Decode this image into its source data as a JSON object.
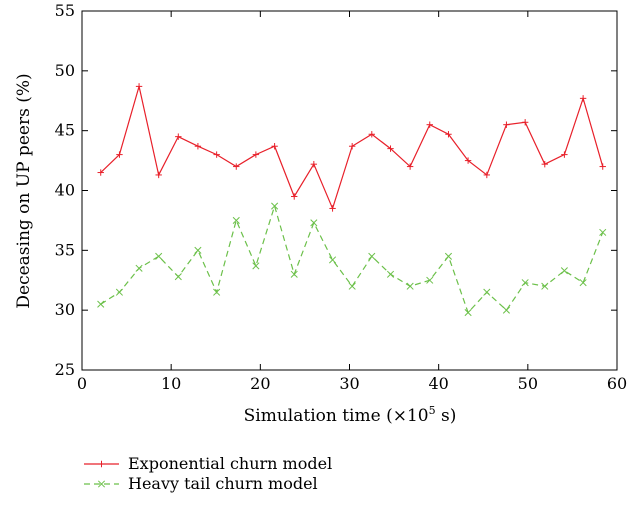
{
  "chart_data": {
    "type": "line",
    "title": "",
    "xlabel": "Simulation time (×10",
    "xlabel_exp": "5",
    "xlabel_unit": " s)",
    "ylabel": "Deceasing on UP peers (%)",
    "xlim": [
      0,
      60
    ],
    "ylim": [
      25,
      55
    ],
    "x_ticks": [
      0,
      10,
      20,
      30,
      40,
      50,
      60
    ],
    "y_ticks": [
      25,
      30,
      35,
      40,
      45,
      50,
      55
    ],
    "grid": false,
    "legend_position": "bottom-left, below plot",
    "x": [
      2.1,
      4.2,
      6.4,
      8.6,
      10.8,
      13,
      15.1,
      17.3,
      19.5,
      21.6,
      23.8,
      26,
      28.1,
      30.3,
      32.5,
      34.6,
      36.8,
      39,
      41.1,
      43.3,
      45.4,
      47.6,
      49.7,
      51.9,
      54.1,
      56.2,
      58.4
    ],
    "series": [
      {
        "name": "Exponential churn model",
        "color": "#e8202a",
        "style": "solid",
        "marker": "plus",
        "values": [
          41.5,
          43.0,
          48.7,
          41.3,
          44.5,
          43.7,
          43.0,
          42.0,
          43.0,
          43.7,
          39.5,
          42.2,
          38.5,
          43.7,
          44.7,
          43.5,
          42.0,
          45.5,
          44.7,
          42.5,
          41.3,
          45.5,
          45.7,
          42.2,
          43.0,
          47.7,
          42.0
        ]
      },
      {
        "name": "Heavy tail churn model",
        "color": "#6cc04a",
        "style": "dashed",
        "marker": "x",
        "values": [
          30.5,
          31.5,
          33.5,
          34.5,
          32.8,
          35.0,
          31.5,
          37.5,
          33.7,
          38.7,
          33.0,
          37.3,
          34.2,
          32.0,
          34.5,
          33.0,
          32.0,
          32.5,
          34.5,
          29.8,
          31.5,
          30.0,
          32.3,
          32.0,
          33.3,
          32.3,
          36.5
        ]
      }
    ]
  }
}
